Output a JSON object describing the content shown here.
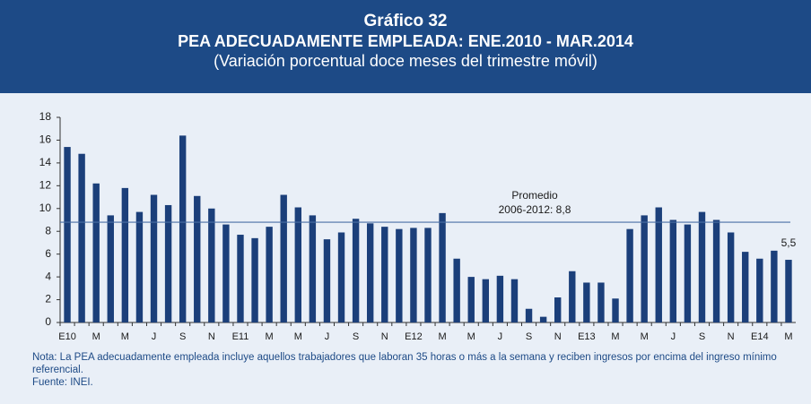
{
  "chart_data": {
    "type": "bar",
    "title": "Gráfico 32",
    "subtitle": "PEA ADECUADAMENTE EMPLEADA: ENE.2010 - MAR.2014",
    "subtitle2": "(Variación porcentual doce meses del trimestre móvil)",
    "categories": [
      "E10",
      null,
      "M",
      null,
      "M",
      null,
      "J",
      null,
      "S",
      null,
      "N",
      null,
      "E11",
      null,
      "M",
      null,
      "M",
      null,
      "J",
      null,
      "S",
      null,
      "N",
      null,
      "E12",
      null,
      "M",
      null,
      "M",
      null,
      "J",
      null,
      "S",
      null,
      "N",
      null,
      "E13",
      null,
      "M",
      null,
      "M",
      null,
      "J",
      null,
      "S",
      null,
      "N",
      null,
      "E14",
      null,
      "M"
    ],
    "values": [
      15.4,
      14.8,
      12.2,
      9.4,
      11.8,
      9.7,
      11.2,
      10.3,
      16.4,
      11.1,
      10.0,
      8.6,
      7.7,
      7.4,
      8.4,
      11.2,
      10.1,
      9.4,
      7.3,
      7.9,
      9.1,
      8.7,
      8.4,
      8.2,
      8.3,
      8.3,
      9.6,
      5.6,
      4.0,
      3.8,
      4.1,
      3.8,
      1.2,
      0.5,
      2.2,
      4.5,
      3.5,
      3.5,
      2.1,
      8.2,
      9.4,
      10.1,
      9.0,
      8.6,
      9.7,
      9.0,
      7.9,
      6.2,
      5.6,
      6.3,
      5.5
    ],
    "value_labels": [
      null,
      null,
      null,
      null,
      null,
      null,
      null,
      null,
      null,
      null,
      null,
      null,
      null,
      null,
      null,
      null,
      null,
      null,
      null,
      null,
      null,
      null,
      null,
      null,
      null,
      null,
      null,
      null,
      null,
      null,
      null,
      null,
      null,
      null,
      null,
      null,
      null,
      null,
      null,
      null,
      null,
      null,
      null,
      null,
      null,
      null,
      null,
      null,
      null,
      null,
      "5,5"
    ],
    "color": "#1b3f7a",
    "average": {
      "value": 8.8,
      "label": "Promedio",
      "label2": "2006-2012: 8,8",
      "color": "#4a6fa5"
    },
    "ylim": [
      0,
      18
    ],
    "yticks": [
      0,
      2,
      4,
      6,
      8,
      10,
      12,
      14,
      16,
      18
    ]
  },
  "notes": [
    "Nota: La PEA adecuadamente empleada incluye aquellos trabajadores que laboran 35 horas o más a la semana y reciben ingresos por encima del ingreso mínimo referencial.",
    "Fuente: INEI."
  ]
}
